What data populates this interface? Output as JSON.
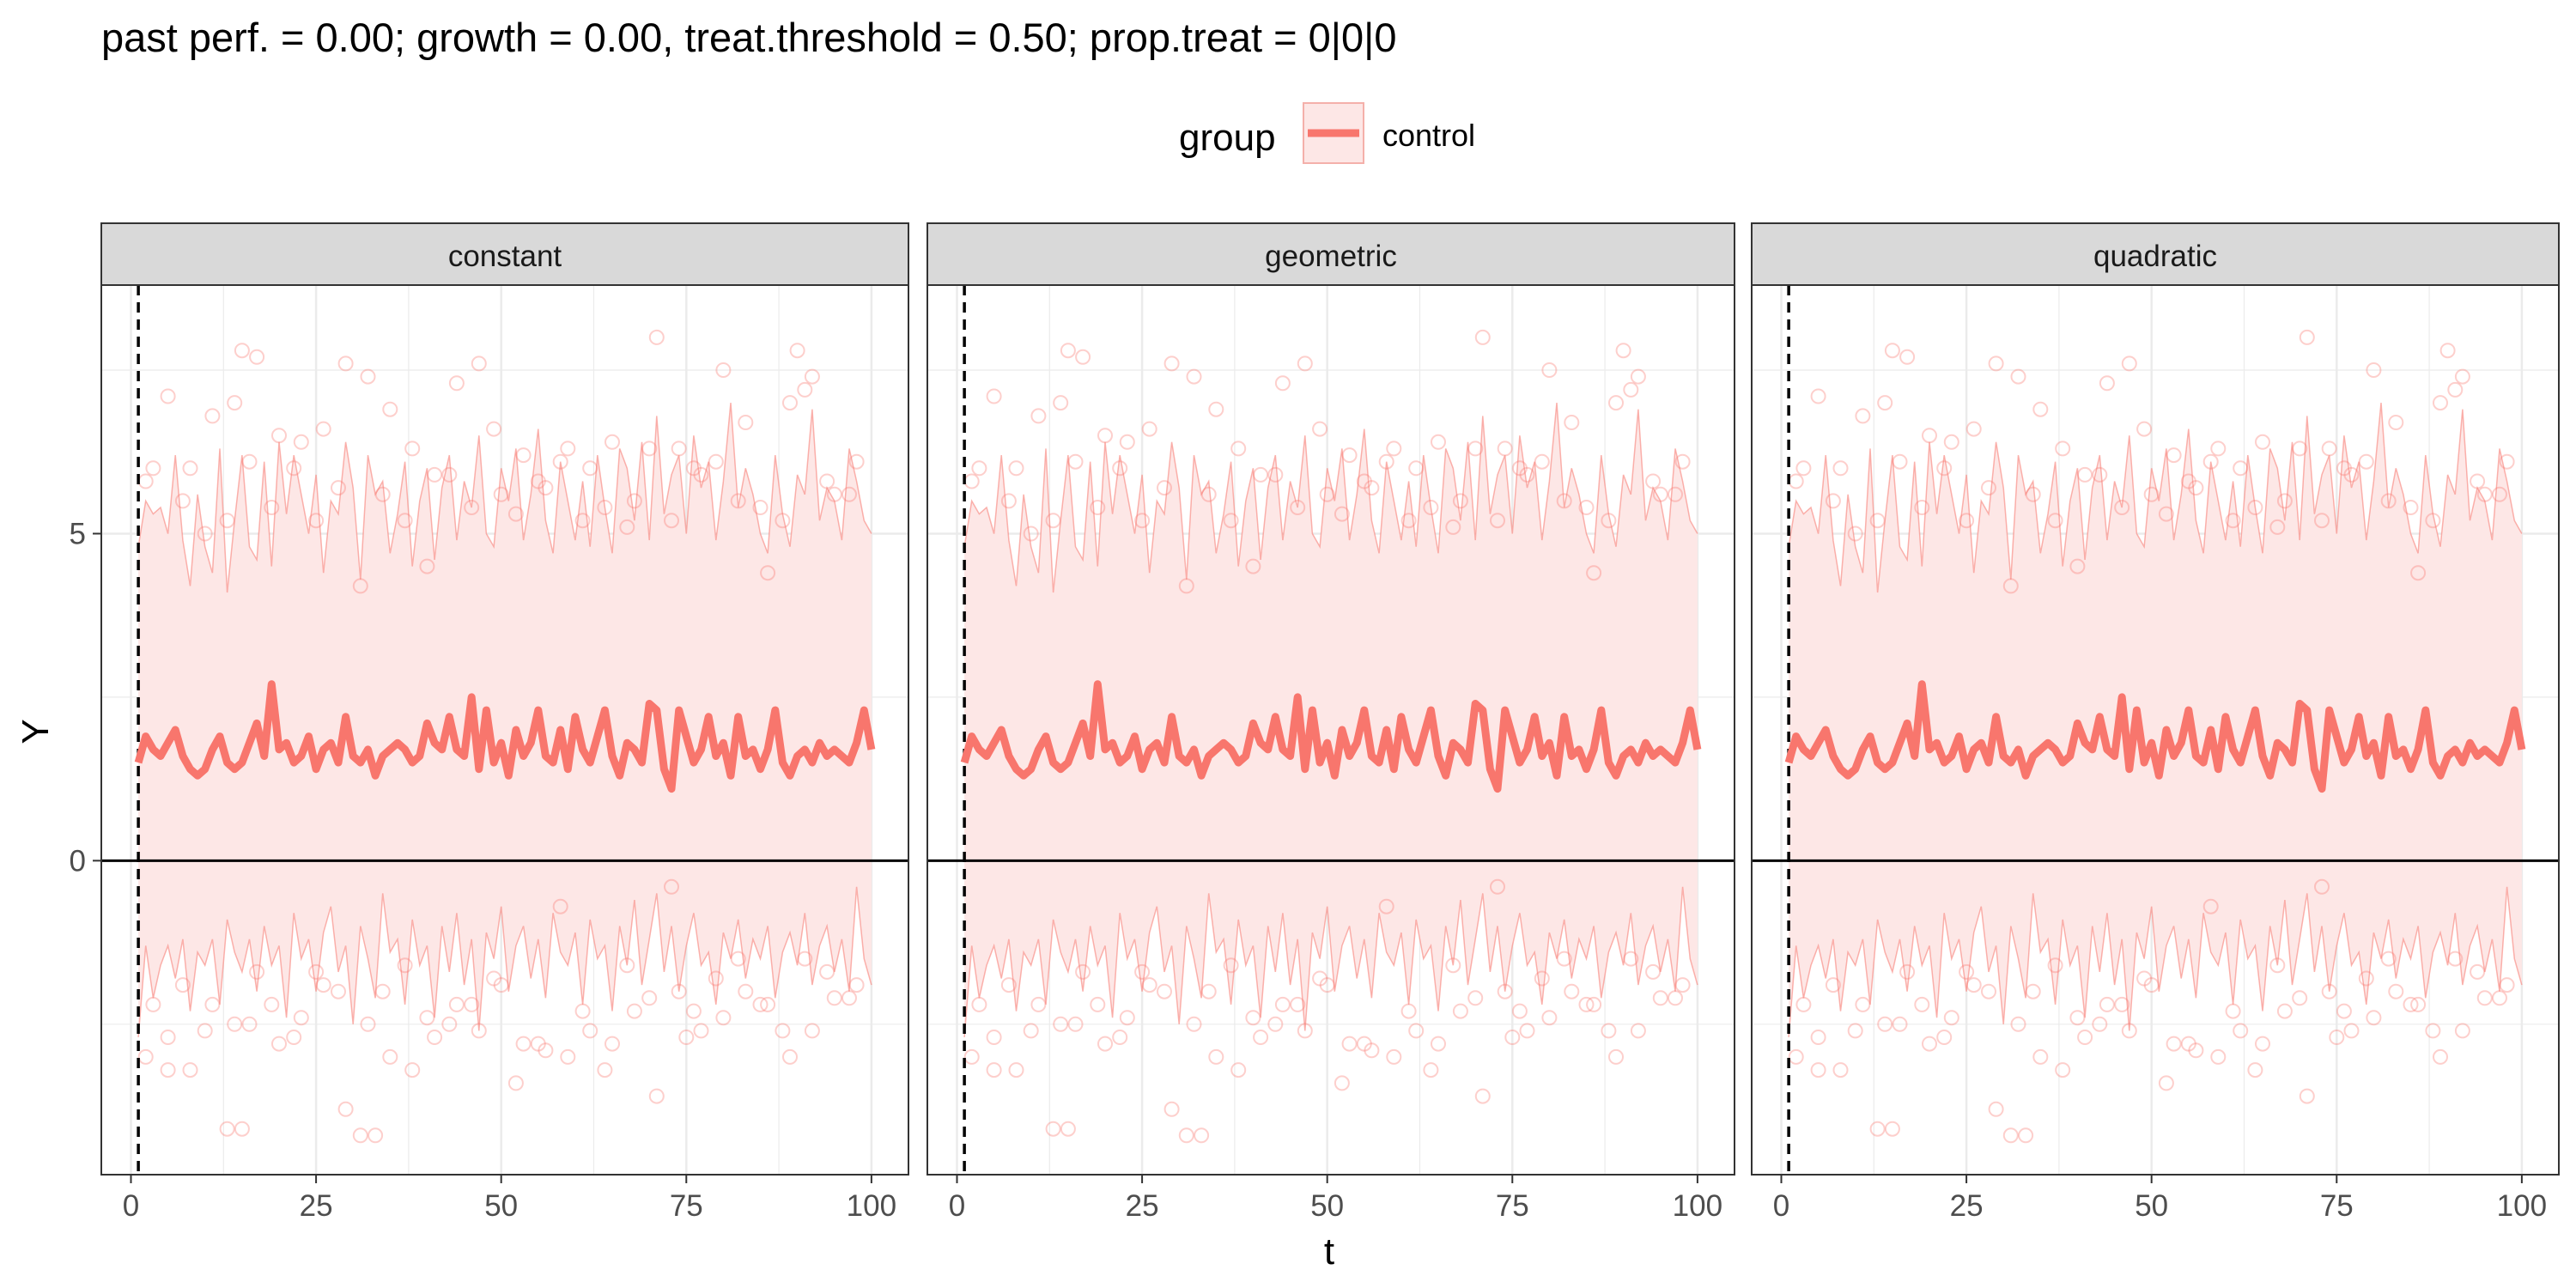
{
  "title": "past perf. = 0.00; growth = 0.00,  treat.threshold = 0.50;  prop.treat = 0|0|0",
  "legend": {
    "title": "group",
    "items": [
      {
        "label": "control",
        "color": "#F8766D"
      }
    ]
  },
  "colors": {
    "series": "#F8766D",
    "ribbon": "#FDE7E6",
    "strip_bg": "#D9D9D9",
    "grid": "#EBEBEB",
    "dashed_line": "#000000"
  },
  "chart_data": {
    "type": "line",
    "xlabel": "t",
    "ylabel": "Y",
    "xlim": [
      -4,
      105
    ],
    "ylim": [
      -4.8,
      8.8
    ],
    "x_ticks": [
      0,
      25,
      50,
      75,
      100
    ],
    "x_tick_labels": [
      "0",
      "25",
      "50",
      "75",
      "100"
    ],
    "y_ticks": [
      0,
      5
    ],
    "y_tick_labels": [
      "0",
      "5"
    ],
    "hline": 0,
    "vline_dashed": 1,
    "grid": true,
    "legend_position": "top",
    "facets": [
      {
        "label": "constant"
      },
      {
        "label": "geometric"
      },
      {
        "label": "quadratic"
      }
    ],
    "series": [
      {
        "name": "control",
        "x_start": 1,
        "x_step": 1,
        "mean": [
          1.5,
          1.9,
          1.7,
          1.6,
          1.8,
          2.0,
          1.6,
          1.4,
          1.3,
          1.4,
          1.7,
          1.9,
          1.5,
          1.4,
          1.5,
          1.8,
          2.1,
          1.6,
          2.7,
          1.7,
          1.8,
          1.5,
          1.6,
          1.9,
          1.4,
          1.7,
          1.8,
          1.5,
          2.2,
          1.6,
          1.5,
          1.7,
          1.3,
          1.6,
          1.7,
          1.8,
          1.7,
          1.5,
          1.6,
          2.1,
          1.8,
          1.7,
          2.2,
          1.7,
          1.6,
          2.5,
          1.4,
          2.3,
          1.5,
          1.8,
          1.3,
          2.0,
          1.6,
          1.8,
          2.3,
          1.6,
          1.5,
          2.0,
          1.4,
          2.2,
          1.7,
          1.5,
          1.9,
          2.3,
          1.6,
          1.3,
          1.8,
          1.7,
          1.5,
          2.4,
          2.3,
          1.4,
          1.1,
          2.3,
          1.9,
          1.5,
          1.7,
          2.2,
          1.6,
          1.8,
          1.3,
          2.2,
          1.6,
          1.7,
          1.4,
          1.7,
          2.3,
          1.5,
          1.3,
          1.6,
          1.7,
          1.5,
          1.8,
          1.6,
          1.7,
          1.6,
          1.5,
          1.8,
          2.3,
          1.7
        ],
        "upper": [
          4.8,
          5.5,
          5.3,
          5.4,
          5.0,
          6.2,
          4.9,
          4.2,
          5.6,
          4.8,
          4.4,
          6.3,
          4.1,
          5.2,
          6.2,
          4.8,
          4.6,
          6.1,
          4.5,
          6.4,
          5.3,
          6.2,
          5.6,
          5.0,
          5.9,
          4.4,
          5.5,
          5.3,
          6.4,
          5.7,
          4.3,
          6.2,
          5.6,
          5.8,
          4.7,
          5.3,
          6.1,
          4.5,
          5.5,
          6.0,
          4.6,
          5.7,
          6.2,
          4.9,
          5.8,
          5.4,
          6.5,
          5.0,
          4.8,
          6.0,
          5.5,
          6.3,
          4.9,
          5.6,
          6.6,
          5.2,
          4.7,
          6.1,
          5.5,
          4.9,
          5.8,
          4.8,
          6.2,
          5.4,
          4.7,
          6.3,
          6.0,
          5.2,
          6.4,
          4.9,
          6.8,
          5.3,
          5.9,
          6.2,
          5.0,
          6.5,
          5.7,
          6.1,
          4.9,
          5.8,
          7.0,
          5.4,
          6.0,
          5.6,
          5.0,
          4.7,
          6.2,
          5.3,
          4.8,
          5.9,
          5.6,
          6.9,
          5.2,
          5.7,
          5.5,
          4.9,
          6.3,
          5.8,
          5.2,
          5.0
        ],
        "lower": [
          -2.7,
          -1.3,
          -2.1,
          -1.6,
          -1.3,
          -1.8,
          -1.2,
          -2.3,
          -1.4,
          -1.6,
          -1.2,
          -2.2,
          -0.9,
          -1.4,
          -1.7,
          -1.2,
          -2.0,
          -1.0,
          -1.6,
          -1.3,
          -2.4,
          -0.8,
          -1.5,
          -1.2,
          -2.0,
          -1.1,
          -0.7,
          -1.7,
          -1.3,
          -2.5,
          -1.0,
          -1.5,
          -2.1,
          -0.5,
          -1.4,
          -1.2,
          -2.2,
          -0.9,
          -1.6,
          -1.3,
          -2.4,
          -1.0,
          -1.7,
          -0.8,
          -1.9,
          -1.2,
          -2.6,
          -1.1,
          -1.5,
          -0.7,
          -2.0,
          -1.3,
          -1.0,
          -1.8,
          -1.2,
          -2.1,
          -0.8,
          -1.4,
          -1.6,
          -1.1,
          -2.2,
          -0.9,
          -1.5,
          -1.3,
          -2.3,
          -1.0,
          -1.6,
          -0.6,
          -1.9,
          -1.2,
          -0.5,
          -1.7,
          -1.0,
          -2.0,
          -1.3,
          -0.8,
          -1.6,
          -1.4,
          -2.2,
          -1.1,
          -1.5,
          -0.9,
          -1.8,
          -1.2,
          -1.5,
          -1.0,
          -2.1,
          -1.4,
          -1.1,
          -1.6,
          -0.8,
          -1.9,
          -1.3,
          -1.0,
          -1.7,
          -1.2,
          -2.0,
          -0.4,
          -1.5,
          -1.9
        ],
        "points_x": [
          2,
          5,
          8,
          11,
          14,
          17,
          20,
          23,
          26,
          29,
          32,
          35,
          38,
          41,
          44,
          47,
          50,
          53,
          56,
          59,
          62,
          65,
          68,
          71,
          74,
          77,
          80,
          83,
          86,
          89,
          92,
          95,
          98,
          3,
          7,
          10,
          13,
          16,
          19,
          22,
          25,
          28,
          31,
          34,
          37,
          40,
          43,
          46,
          49,
          52,
          55,
          58,
          61,
          64,
          67,
          70,
          73,
          76,
          79,
          82,
          85,
          88,
          91,
          94,
          97
        ],
        "points_y_upper": [
          5.8,
          7.1,
          6.0,
          6.8,
          7.0,
          7.7,
          6.5,
          6.4,
          6.6,
          7.6,
          7.4,
          6.9,
          6.3,
          5.9,
          7.3,
          7.6,
          5.6,
          6.2,
          5.7,
          6.3,
          6.0,
          6.4,
          5.5,
          8.0,
          6.3,
          5.9,
          7.5,
          6.7,
          4.4,
          7.0,
          7.4,
          5.6,
          6.1,
          6.0,
          5.5,
          5.0,
          5.2,
          6.1,
          5.4,
          6.0,
          5.2,
          5.7,
          4.2,
          5.6,
          5.2,
          4.5,
          5.9,
          5.4,
          6.6,
          5.3,
          5.8,
          6.1,
          5.2,
          5.4,
          5.1,
          6.3,
          5.2,
          6.0,
          6.1,
          5.5,
          5.4,
          5.2,
          7.2,
          5.8,
          5.6
        ],
        "points_y_lower": [
          -3.0,
          -2.7,
          -3.2,
          -2.2,
          -2.5,
          -1.7,
          -2.8,
          -2.4,
          -1.9,
          -3.8,
          -2.5,
          -3.0,
          -3.2,
          -2.7,
          -2.2,
          -2.6,
          -1.9,
          -2.8,
          -2.9,
          -3.0,
          -2.6,
          -2.8,
          -2.3,
          -3.6,
          -2.0,
          -2.6,
          -2.4,
          -2.0,
          -2.2,
          -3.0,
          -2.6,
          -2.1,
          -1.9,
          -2.2,
          -1.9,
          -2.6,
          -4.1,
          -2.5,
          -2.2,
          -2.7,
          -1.7,
          -2.0,
          -4.2,
          -2.0,
          -1.6,
          -2.4,
          -2.5,
          -2.2,
          -1.8,
          -3.4,
          -2.8,
          -0.7,
          -2.3,
          -3.2,
          -1.6,
          -2.1,
          -0.4,
          -2.3,
          -1.8,
          -1.5,
          -2.2,
          -2.6,
          -1.5,
          -1.7,
          -2.1
        ],
        "points_outlier": [
          [
            15,
            7.8
          ],
          [
            15,
            -4.1
          ],
          [
            33,
            -4.2
          ],
          [
            75,
            -2.7
          ],
          [
            90,
            7.8
          ],
          [
            5,
            -3.2
          ]
        ]
      }
    ]
  }
}
